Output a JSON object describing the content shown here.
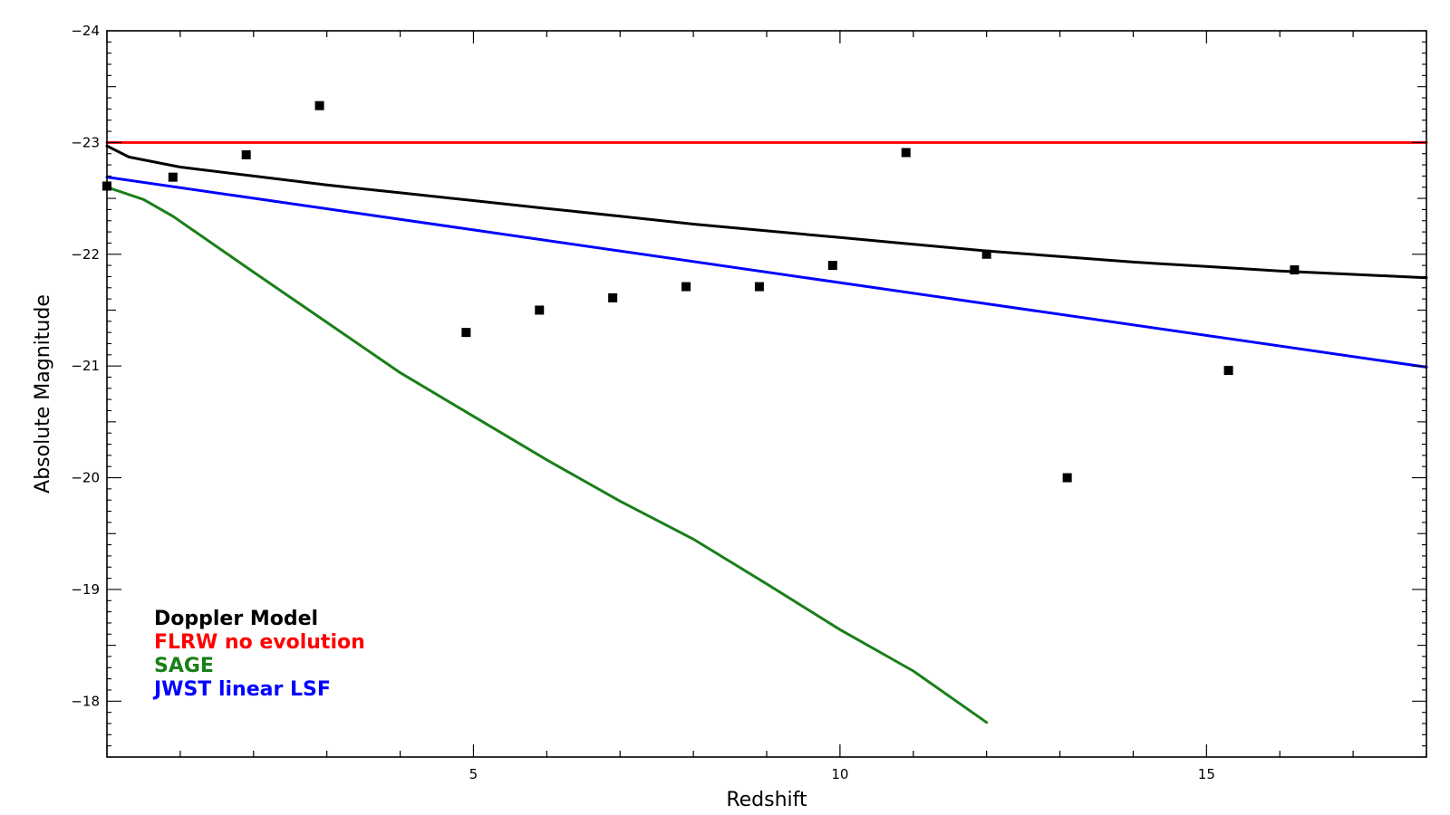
{
  "chart_data": {
    "type": "line",
    "xlabel": "Redshift",
    "ylabel": "Absolute Magnitude",
    "xlim": [
      0.0,
      18.0
    ],
    "ylim": [
      -17.5,
      -24.0
    ],
    "y_axis_inverted": true,
    "x_ticks": [
      {
        "value": 5,
        "label": "5"
      },
      {
        "value": 10,
        "label": "10"
      },
      {
        "value": 15,
        "label": "15"
      }
    ],
    "y_ticks": [
      {
        "value": -24,
        "label": "−24"
      },
      {
        "value": -23,
        "label": "−23"
      },
      {
        "value": -22,
        "label": "−22"
      },
      {
        "value": -21,
        "label": "−21"
      },
      {
        "value": -20,
        "label": "−20"
      },
      {
        "value": -19,
        "label": "−19"
      },
      {
        "value": -18,
        "label": "−18"
      }
    ],
    "legend_position": "bottom-left",
    "series": [
      {
        "name": "Doppler Model",
        "color": "#000000",
        "kind": "line",
        "points": [
          [
            0.0,
            -22.97
          ],
          [
            0.3,
            -22.87
          ],
          [
            1,
            -22.78
          ],
          [
            2,
            -22.7
          ],
          [
            3,
            -22.62
          ],
          [
            4,
            -22.55
          ],
          [
            5,
            -22.48
          ],
          [
            6,
            -22.41
          ],
          [
            7,
            -22.34
          ],
          [
            8,
            -22.27
          ],
          [
            9,
            -22.21
          ],
          [
            10,
            -22.15
          ],
          [
            11,
            -22.09
          ],
          [
            12,
            -22.03
          ],
          [
            13,
            -21.98
          ],
          [
            14,
            -21.93
          ],
          [
            15,
            -21.89
          ],
          [
            16,
            -21.85
          ],
          [
            17,
            -21.82
          ],
          [
            18,
            -21.79
          ]
        ]
      },
      {
        "name": "FLRW no evolution",
        "color": "#ff0000",
        "kind": "line",
        "points": [
          [
            0.0,
            -23.0
          ],
          [
            18.0,
            -23.0
          ]
        ]
      },
      {
        "name": "SAGE",
        "color": "#1a7f1a",
        "kind": "line",
        "points": [
          [
            0.0,
            -22.6
          ],
          [
            0.5,
            -22.49
          ],
          [
            0.9,
            -22.34
          ],
          [
            2,
            -21.84
          ],
          [
            3,
            -21.39
          ],
          [
            4,
            -20.94
          ],
          [
            5,
            -20.55
          ],
          [
            6,
            -20.16
          ],
          [
            7,
            -19.79
          ],
          [
            8,
            -19.45
          ],
          [
            9,
            -19.05
          ],
          [
            10,
            -18.64
          ],
          [
            11,
            -18.27
          ],
          [
            12,
            -17.81
          ]
        ]
      },
      {
        "name": "JWST linear LSF",
        "color": "#0000ff",
        "kind": "line",
        "points": [
          [
            0.0,
            -22.69
          ],
          [
            18.0,
            -20.99
          ]
        ]
      },
      {
        "name": "",
        "color": "#000000",
        "kind": "scatter",
        "points": [
          [
            0.0,
            -22.61
          ],
          [
            0.9,
            -22.69
          ],
          [
            1.9,
            -22.89
          ],
          [
            2.9,
            -23.33
          ],
          [
            4.9,
            -21.3
          ],
          [
            5.9,
            -21.5
          ],
          [
            6.9,
            -21.61
          ],
          [
            7.9,
            -21.71
          ],
          [
            8.9,
            -21.71
          ],
          [
            9.9,
            -21.9
          ],
          [
            10.9,
            -22.91
          ],
          [
            12.0,
            -22.0
          ],
          [
            13.1,
            -20.0
          ],
          [
            15.3,
            -20.96
          ],
          [
            16.2,
            -21.86
          ]
        ]
      }
    ]
  }
}
